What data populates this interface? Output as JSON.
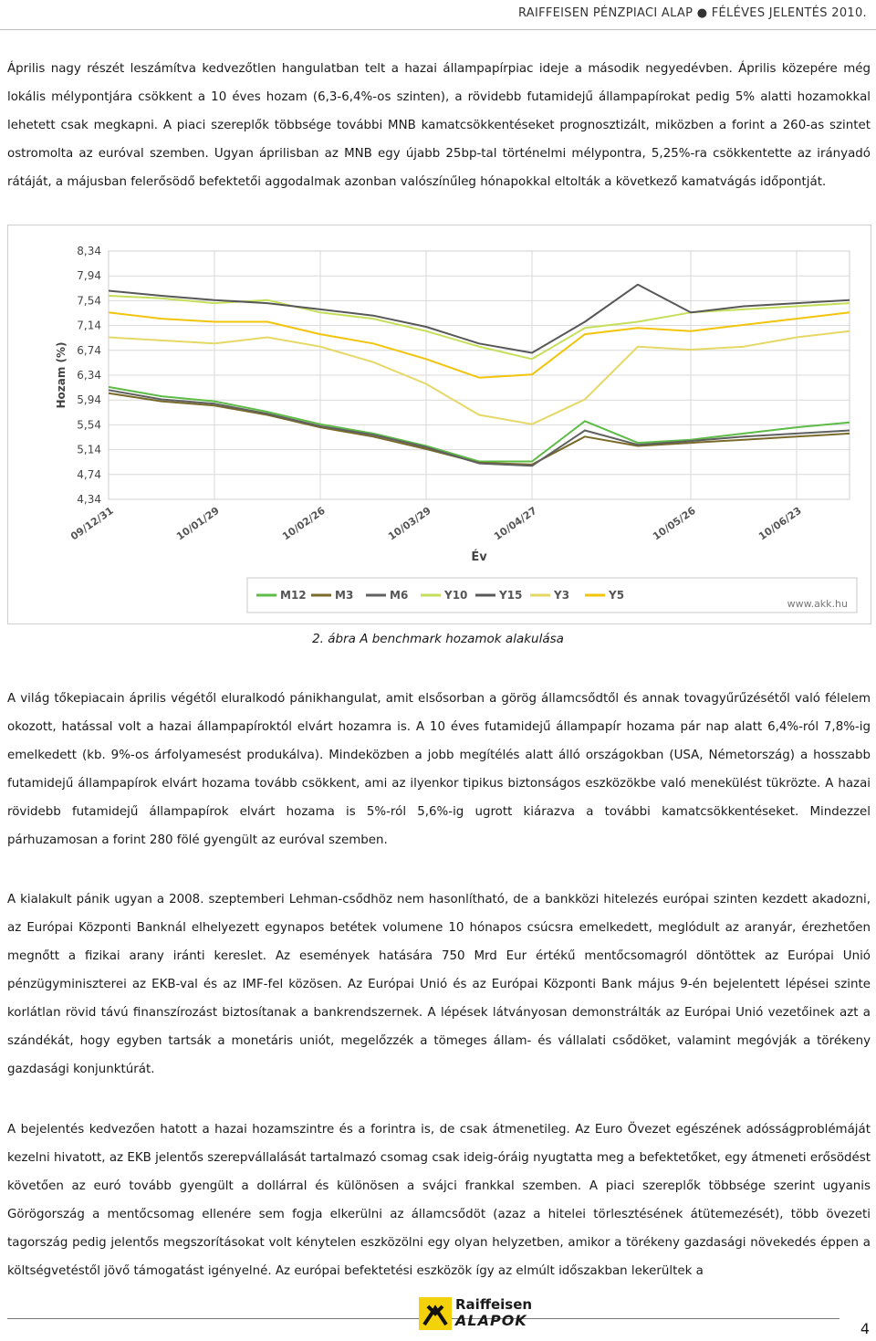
{
  "header": {
    "title": "RAIFFEISEN PÉNZPIACI ALAP ● FÉLÉVES JELENTÉS 2010."
  },
  "paragraphs": {
    "p1": "Április nagy részét leszámítva kedvezőtlen hangulatban telt a hazai állampapírpiac ideje a második negyedévben. Április közepére még lokális mélypontjára csökkent a 10 éves hozam (6,3-6,4%-os szinten), a rövidebb futamidejű állampapírokat pedig 5% alatti hozamokkal lehetett csak megkapni. A piaci szereplők többsége további MNB kamatcsökkentéseket prognosztizált, miközben a forint a 260-as szintet ostromolta az euróval szemben. Ugyan áprilisban az MNB egy újabb 25bp-tal történelmi mélypontra, 5,25%-ra csökkentette az irányadó rátáját, a májusban felerősödő befektetői aggodalmak azonban valószínűleg hónapokkal eltolták a következő kamatvágás időpontját.",
    "p2": "A világ tőkepiacain április végétől eluralkodó pánikhangulat, amit elsősorban a görög államcsődtől és annak tovagyűrűzésétől való félelem okozott, hatással volt a hazai állampapíroktól elvárt hozamra is. A 10 éves futamidejű állampapír hozama pár nap alatt 6,4%-ról 7,8%-ig emelkedett (kb. 9%-os árfolyamesést produkálva). Mindeközben a jobb megítélés alatt álló országokban (USA, Németország) a hosszabb futamidejű állampapírok elvárt hozama tovább csökkent, ami az ilyenkor tipikus biztonságos eszközökbe való menekülést tükrözte. A hazai rövidebb futamidejű állampapírok elvárt hozama is 5%-ról 5,6%-ig ugrott kiárazva a további kamatcsökkentéseket. Mindezzel párhuzamosan a forint 280 fölé gyengült az euróval szemben.",
    "p3": "A kialakult pánik ugyan a 2008. szeptemberi Lehman-csődhöz nem hasonlítható, de a bankközi hitelezés európai szinten kezdett akadozni, az Európai Központi Banknál elhelyezett egynapos betétek volumene 10 hónapos csúcsra emelkedett, meglódult az aranyár, érezhetően megnőtt a fizikai arany iránti kereslet. Az események hatására 750 Mrd Eur értékű mentőcsomagról döntöttek az Európai Unió pénzügyminiszterei az EKB-val és az IMF-fel közösen. Az Európai Unió és az Európai Központi Bank május 9-én bejelentett lépései szinte korlátlan rövid távú finanszírozást biztosítanak a bankrendszernek. A lépések látványosan demonstrálták az Európai Unió vezetőinek azt a szándékát, hogy egyben tartsák a monetáris uniót, megelőzzék a tömeges állam- és vállalati csődöket, valamint megóvják a törékeny gazdasági konjunktúrát.",
    "p4": "A bejelentés kedvezően hatott a hazai hozamszintre és a forintra is, de csak átmenetileg. Az Euro Övezet egészének adósságproblémáját kezelni hivatott, az EKB jelentős szerepvállalását tartalmazó csomag csak ideig-óráig nyugtatta meg a befektetőket, egy átmeneti erősödést követően az euró tovább gyengült a dollárral és különösen a svájci frankkal szemben. A piaci szereplők többsége szerint ugyanis Görögország a mentőcsomag ellenére sem fogja elkerülni az államcsődöt (azaz a hitelei törlesztésének átütemezését), több övezeti tagország pedig jelentős megszorításokat volt kénytelen eszközölni egy olyan helyzetben, amikor a törékeny gazdasági növekedés éppen a költségvetéstől jövő támogatást igényelné. Az európai befektetési eszközök így az elmúlt időszakban lekerültek a"
  },
  "caption": "2. ábra  A benchmark hozamok alakulása",
  "footer": {
    "logo_line1": "Raiffeisen",
    "logo_line2": "ALAPOK",
    "page_number": "4"
  },
  "chart_data": {
    "type": "line",
    "ylabel": "Hozam (%)",
    "xlabel": "Év",
    "source": "www.akk.hu",
    "y_ticks": [
      "8,34",
      "7,94",
      "7,54",
      "7,14",
      "6,74",
      "6,34",
      "5,94",
      "5,54",
      "5,14",
      "4,74",
      "4,34"
    ],
    "x_ticks": [
      "09/12/31",
      "10/01/29",
      "10/02/26",
      "10/03/29",
      "10/04/27",
      "10/05/26",
      "10/06/23"
    ],
    "ylim": [
      4.34,
      8.34
    ],
    "x": [
      "09/12/31",
      "10/01/12",
      "10/01/29",
      "10/02/12",
      "10/02/26",
      "10/03/12",
      "10/03/29",
      "10/04/12",
      "10/04/27",
      "10/05/05",
      "10/05/12",
      "10/05/26",
      "10/06/10",
      "10/06/23",
      "10/06/30"
    ],
    "colors": {
      "M12": "#5dbb46",
      "M3": "#7a6a2a",
      "M6": "#606060",
      "Y10": "#c6df5a",
      "Y15": "#585858",
      "Y3": "#e6d866",
      "Y5": "#f2c40c"
    },
    "series": [
      {
        "name": "M12",
        "values": [
          6.15,
          6.0,
          5.92,
          5.75,
          5.55,
          5.4,
          5.2,
          4.95,
          4.95,
          5.6,
          5.25,
          5.3,
          5.4,
          5.5,
          5.58
        ]
      },
      {
        "name": "M3",
        "values": [
          6.05,
          5.92,
          5.85,
          5.7,
          5.5,
          5.35,
          5.15,
          4.93,
          4.9,
          5.35,
          5.2,
          5.25,
          5.3,
          5.35,
          5.4
        ]
      },
      {
        "name": "M6",
        "values": [
          6.1,
          5.95,
          5.88,
          5.72,
          5.52,
          5.38,
          5.18,
          4.92,
          4.88,
          5.45,
          5.22,
          5.28,
          5.35,
          5.4,
          5.45
        ]
      },
      {
        "name": "Y10",
        "values": [
          7.62,
          7.58,
          7.5,
          7.55,
          7.35,
          7.25,
          7.05,
          6.8,
          6.6,
          7.1,
          7.2,
          7.35,
          7.4,
          7.45,
          7.5
        ]
      },
      {
        "name": "Y15",
        "values": [
          7.7,
          7.62,
          7.55,
          7.5,
          7.4,
          7.3,
          7.12,
          6.85,
          6.7,
          7.2,
          7.8,
          7.35,
          7.45,
          7.5,
          7.55
        ]
      },
      {
        "name": "Y3",
        "values": [
          6.95,
          6.9,
          6.85,
          6.95,
          6.8,
          6.55,
          6.2,
          5.7,
          5.55,
          5.95,
          6.8,
          6.75,
          6.8,
          6.95,
          7.05
        ]
      },
      {
        "name": "Y5",
        "values": [
          7.35,
          7.25,
          7.2,
          7.2,
          7.0,
          6.85,
          6.6,
          6.3,
          6.35,
          7.0,
          7.1,
          7.05,
          7.15,
          7.25,
          7.35
        ]
      }
    ]
  }
}
